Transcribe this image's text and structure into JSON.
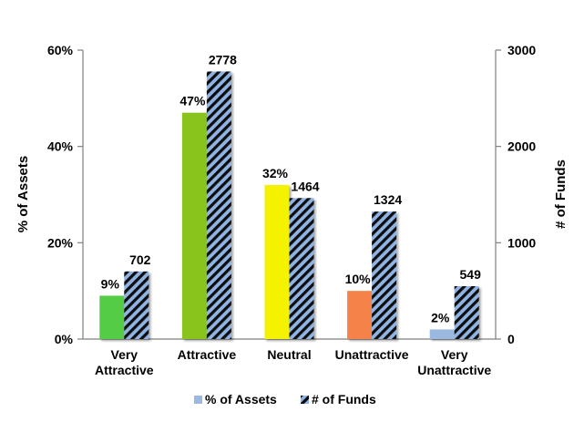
{
  "chart_data": {
    "type": "bar",
    "categories": [
      [
        "Very",
        "Attractive"
      ],
      [
        "Attractive"
      ],
      [
        "Neutral"
      ],
      [
        "Unattractive"
      ],
      [
        "Very",
        "Unattractive"
      ]
    ],
    "series": [
      {
        "name": "% of Assets",
        "axis": "left",
        "values": [
          9,
          47,
          32,
          10,
          2
        ],
        "value_labels": [
          "9%",
          "47%",
          "32%",
          "10%",
          "2%"
        ],
        "colors": [
          "#55cc44",
          "#88c41a",
          "#f5f200",
          "#f5834a",
          "#9ab8e0"
        ]
      },
      {
        "name": "# of Funds",
        "axis": "right",
        "values": [
          702,
          2778,
          1464,
          1324,
          549
        ],
        "value_labels": [
          "702",
          "2778",
          "1464",
          "1324",
          "549"
        ],
        "pattern_colors": [
          "#0a0a0a",
          "#8fb3e3"
        ]
      }
    ],
    "ylabel_left": "% of Assets",
    "ylabel_right": "# of Funds",
    "ylim_left": [
      0,
      60
    ],
    "ylim_right": [
      0,
      3000
    ],
    "yticks_left": [
      "0%",
      "20%",
      "40%",
      "60%"
    ],
    "yticks_right": [
      "0",
      "1000",
      "2000",
      "3000"
    ],
    "grid": false,
    "legend_position": "bottom"
  }
}
